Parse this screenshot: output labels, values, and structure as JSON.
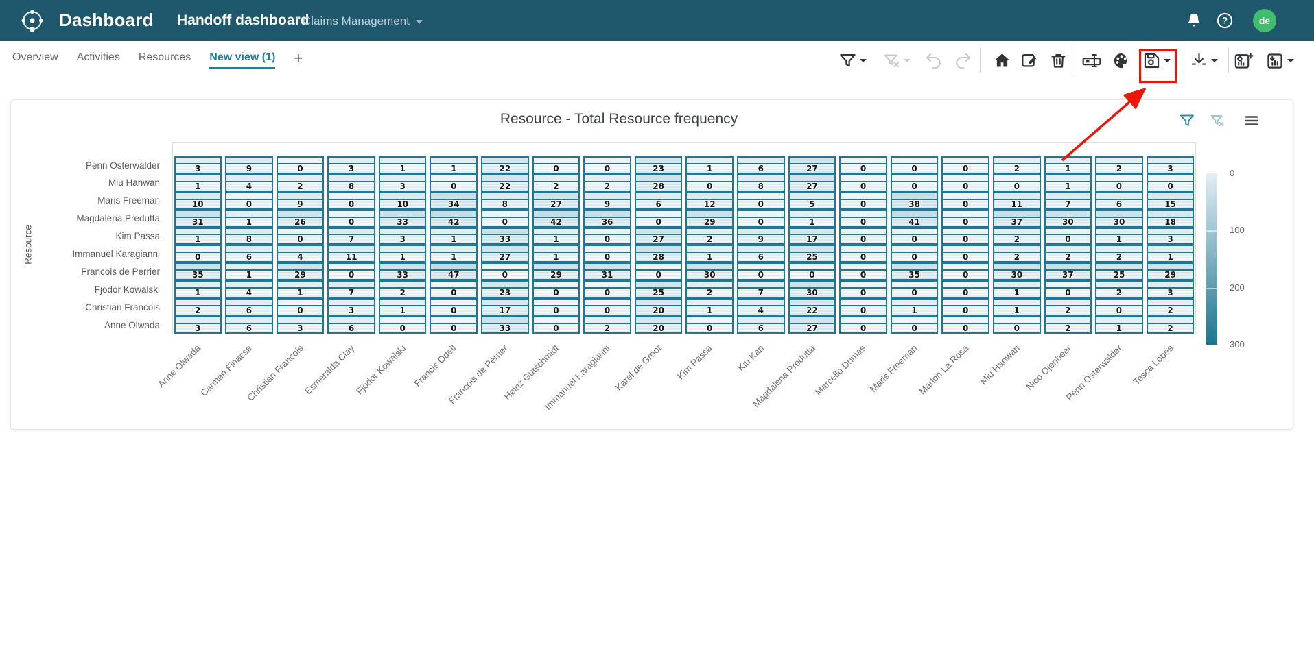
{
  "header": {
    "app_title": "Dashboard",
    "dashboard_name": "Handoff dashboard",
    "process_selector": {
      "label": "Claims Management"
    },
    "avatar_initials": "de",
    "icons": [
      "logo-icon",
      "bell-icon",
      "help-icon"
    ],
    "colors": {
      "bar": "#1f586c",
      "avatar": "#41bd6d",
      "accent": "#1b7da2"
    }
  },
  "tabs": {
    "items": [
      {
        "label": "Overview",
        "active": false
      },
      {
        "label": "Activities",
        "active": false
      },
      {
        "label": "Resources",
        "active": false
      },
      {
        "label": "New view (1)",
        "active": true
      }
    ],
    "add_label": "+"
  },
  "toolbar": {
    "items": [
      {
        "name": "filter",
        "icon": "funnel-icon",
        "enabled": true,
        "caret": true
      },
      {
        "name": "remove-filters",
        "icon": "funnel-clear-icon",
        "enabled": false,
        "caret": true
      },
      {
        "name": "undo",
        "icon": "undo-icon",
        "enabled": false,
        "caret": false
      },
      {
        "name": "redo",
        "icon": "redo-icon",
        "enabled": false,
        "caret": false
      },
      {
        "name": "home",
        "icon": "home-icon",
        "enabled": true,
        "caret": false
      },
      {
        "name": "edit-dashboard",
        "icon": "edit-icon",
        "enabled": true,
        "caret": false
      },
      {
        "name": "delete-view",
        "icon": "trash-icon",
        "enabled": true,
        "caret": false
      },
      {
        "name": "rename-view",
        "icon": "rename-icon",
        "enabled": true,
        "caret": false
      },
      {
        "name": "customize-colors",
        "icon": "palette-icon",
        "enabled": true,
        "caret": false
      },
      {
        "name": "save-view",
        "icon": "save-icon",
        "enabled": true,
        "caret": true,
        "highlighted": true
      },
      {
        "name": "download",
        "icon": "download-icon",
        "enabled": true,
        "caret": true
      },
      {
        "name": "add-chart",
        "icon": "chart-add-icon",
        "enabled": true,
        "caret": false
      },
      {
        "name": "export-chart",
        "icon": "chart-export-icon",
        "enabled": true,
        "caret": true
      }
    ]
  },
  "chart_card": {
    "header_icons": [
      {
        "name": "chart-filter",
        "icon": "funnel-icon",
        "color": "#2b8cab"
      },
      {
        "name": "chart-remove-filter",
        "icon": "funnel-clear-icon",
        "color": "#9cc3d2"
      },
      {
        "name": "chart-menu",
        "icon": "hamburger-icon",
        "color": "#4a4a4a"
      }
    ]
  },
  "chart_data": {
    "type": "heatmap",
    "title": "Resource - Total Resource frequency",
    "xlabel": "",
    "ylabel": "Resource",
    "rows": [
      "Penn Osterwalder",
      "Miu Hanwan",
      "Maris Freeman",
      "Magdalena Predutta",
      "Kim Passa",
      "Immanuel Karagianni",
      "Francois de Perrier",
      "Fjodor Kowalski",
      "Christian Francois",
      "Anne Olwada"
    ],
    "columns": [
      "Anne Olwada",
      "Carmen Finacse",
      "Christian Francois",
      "Esmeralda Clay",
      "Fjodor Kowalski",
      "Francis Odell",
      "Francois de Perrier",
      "Heinz Gutschmidt",
      "Immanuel Karagianni",
      "Karel de Groot",
      "Kim Passa",
      "Kiu Kan",
      "Magdalena Predutta",
      "Marcello Dumas",
      "Maris Freeman",
      "Marlon La Rosa",
      "Miu Hanwan",
      "Nico Ojenbeer",
      "Penn Osterwalder",
      "Tesca Lobes"
    ],
    "values": [
      [
        3,
        9,
        0,
        3,
        1,
        1,
        22,
        0,
        0,
        23,
        1,
        6,
        27,
        0,
        0,
        0,
        2,
        1,
        2,
        3
      ],
      [
        1,
        4,
        2,
        8,
        3,
        0,
        22,
        2,
        2,
        28,
        0,
        8,
        27,
        0,
        0,
        0,
        0,
        1,
        0,
        0
      ],
      [
        10,
        0,
        9,
        0,
        10,
        34,
        8,
        27,
        9,
        6,
        12,
        0,
        5,
        0,
        38,
        0,
        11,
        7,
        6,
        15
      ],
      [
        31,
        1,
        26,
        0,
        33,
        42,
        0,
        42,
        36,
        0,
        29,
        0,
        1,
        0,
        41,
        0,
        37,
        30,
        30,
        18
      ],
      [
        1,
        8,
        0,
        7,
        3,
        1,
        33,
        1,
        0,
        27,
        2,
        9,
        17,
        0,
        0,
        0,
        2,
        0,
        1,
        3
      ],
      [
        0,
        6,
        4,
        11,
        1,
        1,
        27,
        1,
        0,
        28,
        1,
        6,
        25,
        0,
        0,
        0,
        2,
        2,
        2,
        1
      ],
      [
        35,
        1,
        29,
        0,
        33,
        47,
        0,
        29,
        31,
        0,
        30,
        0,
        0,
        0,
        35,
        0,
        30,
        37,
        25,
        29
      ],
      [
        1,
        4,
        1,
        7,
        2,
        0,
        23,
        0,
        0,
        25,
        2,
        7,
        30,
        0,
        0,
        0,
        1,
        0,
        2,
        3
      ],
      [
        2,
        6,
        0,
        3,
        1,
        0,
        17,
        0,
        0,
        20,
        1,
        4,
        22,
        0,
        1,
        0,
        1,
        2,
        0,
        2
      ],
      [
        3,
        6,
        3,
        6,
        0,
        0,
        33,
        0,
        2,
        20,
        0,
        6,
        27,
        0,
        0,
        0,
        0,
        2,
        1,
        2
      ]
    ],
    "colorbar": {
      "min": 0,
      "max": 300,
      "ticks": [
        "0",
        "100",
        "200",
        "300"
      ],
      "low_color": "#e4eef3",
      "high_color": "#19758f"
    },
    "cell_border_color": "#1c7896"
  },
  "annotation": {
    "shape": "box-and-arrow",
    "color": "#ee1408",
    "target": "save-view"
  }
}
